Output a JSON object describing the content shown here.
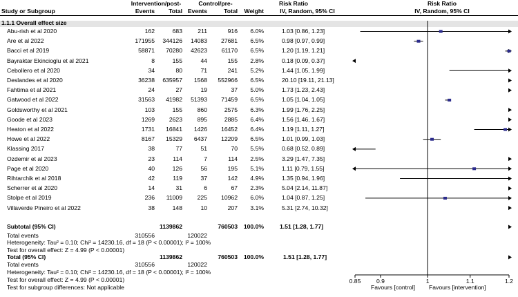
{
  "header": {
    "group1": "Intervention/post-",
    "group2": "Control/pre-",
    "effect": "Risk Ratio",
    "plot_effect": "Risk Ratio",
    "col_study": "Study or Subgroup",
    "col_events1": "Events",
    "col_total1": "Total",
    "col_events2": "Events",
    "col_total2": "Total",
    "col_weight": "Weight",
    "col_ci": "IV, Random, 95% CI",
    "plot_ci": "IV, Random, 95% CI"
  },
  "subgroup_label": "1.1.1 Overall effect size",
  "studies": [
    {
      "name": "Abu-rish et al 2020",
      "e1": "162",
      "t1": "683",
      "e2": "211",
      "t2": "916",
      "weight": "6.0%",
      "ci": "1.03 [0.86, 1.23]"
    },
    {
      "name": "Are et al 2022",
      "e1": "171955",
      "t1": "344126",
      "e2": "14083",
      "t2": "27681",
      "weight": "6.5%",
      "ci": "0.98 [0.97, 0.99]"
    },
    {
      "name": "Bacci et al 2019",
      "e1": "58871",
      "t1": "70280",
      "e2": "42623",
      "t2": "61170",
      "weight": "6.5%",
      "ci": "1.20 [1.19, 1.21]"
    },
    {
      "name": "Bayraktar Ekincioglu et al 2021",
      "e1": "8",
      "t1": "155",
      "e2": "44",
      "t2": "155",
      "weight": "2.8%",
      "ci": "0.18 [0.09, 0.37]"
    },
    {
      "name": "Cebollero et al 2020",
      "e1": "34",
      "t1": "80",
      "e2": "71",
      "t2": "241",
      "weight": "5.2%",
      "ci": "1.44 [1.05, 1.99]"
    },
    {
      "name": "Deslandes et al 2020",
      "e1": "36238",
      "t1": "635957",
      "e2": "1568",
      "t2": "552966",
      "weight": "6.5%",
      "ci": "20.10 [19.11, 21.13]"
    },
    {
      "name": "Fahtima et al 2021",
      "e1": "24",
      "t1": "27",
      "e2": "19",
      "t2": "37",
      "weight": "5.0%",
      "ci": "1.73 [1.23, 2.43]"
    },
    {
      "name": "Gatwood et al 2022",
      "e1": "31563",
      "t1": "41982",
      "e2": "51393",
      "t2": "71459",
      "weight": "6.5%",
      "ci": "1.05 [1.04, 1.05]"
    },
    {
      "name": "Goldsworthy et al 2021",
      "e1": "103",
      "t1": "155",
      "e2": "860",
      "t2": "2575",
      "weight": "6.3%",
      "ci": "1.99 [1.76, 2.25]"
    },
    {
      "name": "Goode et al 2023",
      "e1": "1269",
      "t1": "2623",
      "e2": "895",
      "t2": "2885",
      "weight": "6.4%",
      "ci": "1.56 [1.46, 1.67]"
    },
    {
      "name": "Heaton et al 2022",
      "e1": "1731",
      "t1": "16841",
      "e2": "1426",
      "t2": "16452",
      "weight": "6.4%",
      "ci": "1.19 [1.11, 1.27]"
    },
    {
      "name": "Howe et al 2022",
      "e1": "8167",
      "t1": "15329",
      "e2": "6437",
      "t2": "12209",
      "weight": "6.5%",
      "ci": "1.01 [0.99, 1.03]"
    },
    {
      "name": "Klassing 2017",
      "e1": "38",
      "t1": "77",
      "e2": "51",
      "t2": "70",
      "weight": "5.5%",
      "ci": "0.68 [0.52, 0.89]"
    },
    {
      "name": "Ozdemir et al 2023",
      "e1": "23",
      "t1": "114",
      "e2": "7",
      "t2": "114",
      "weight": "2.5%",
      "ci": "3.29 [1.47, 7.35]"
    },
    {
      "name": "Page et al 2020",
      "e1": "40",
      "t1": "126",
      "e2": "56",
      "t2": "195",
      "weight": "5.1%",
      "ci": "1.11 [0.79, 1.55]"
    },
    {
      "name": "Rihtarchik et al 2018",
      "e1": "42",
      "t1": "119",
      "e2": "37",
      "t2": "142",
      "weight": "4.9%",
      "ci": "1.35 [0.94, 1.96]"
    },
    {
      "name": "Scherrer et al 2020",
      "e1": "14",
      "t1": "31",
      "e2": "6",
      "t2": "67",
      "weight": "2.3%",
      "ci": "5.04 [2.14, 11.87]"
    },
    {
      "name": "Stolpe et al 2019",
      "e1": "236",
      "t1": "11009",
      "e2": "225",
      "t2": "10962",
      "weight": "6.0%",
      "ci": "1.04 [0.87, 1.25]"
    },
    {
      "name": "Villaverde Pineiro et al 2022",
      "e1": "38",
      "t1": "148",
      "e2": "10",
      "t2": "207",
      "weight": "3.1%",
      "ci": "5.31 [2.74, 10.32]"
    }
  ],
  "subtotal": {
    "label": "Subtotal (95% CI)",
    "t1": "1139862",
    "t2": "760503",
    "weight": "100.0%",
    "ci": "1.51 [1.28, 1.77]"
  },
  "subtotal_events": {
    "label": "Total events",
    "e1": "310556",
    "e2": "120022"
  },
  "subtotal_heterogeneity": "Heterogeneity: Tau² = 0.10; Chi² = 14230.16, df = 18 (P < 0.00001); I² = 100%",
  "subtotal_overall": "Test for overall effect: Z = 4.99 (P < 0.00001)",
  "total": {
    "label": "Total (95% CI)",
    "t1": "1139862",
    "t2": "760503",
    "weight": "100.0%",
    "ci": "1.51 [1.28, 1.77]"
  },
  "total_events": {
    "label": "Total events",
    "e1": "310556",
    "e2": "120022"
  },
  "total_heterogeneity": "Heterogeneity: Tau² = 0.10; Chi² = 14230.16, df = 18 (P < 0.00001); I² = 100%",
  "total_overall": "Test for overall effect: Z = 4.99 (P < 0.00001)",
  "subgroup_diff": "Test for subgroup differences: Not applicable",
  "colors": {
    "marker": "#2b2b8c",
    "subgroup_band": "#e4e4e4"
  },
  "chart_data": {
    "type": "forest",
    "scale": "log",
    "xlim": [
      0.85,
      1.2
    ],
    "ticks": [
      0.85,
      0.9,
      1,
      1.1,
      1.2
    ],
    "tick_labels": [
      "0.85",
      "0.9",
      "1",
      "1.1",
      "1.2"
    ],
    "reference": 1,
    "label_left": "Favours [control]",
    "label_right": "Favours [intervention]",
    "series": [
      {
        "est": 1.03,
        "lo": 0.86,
        "hi": 1.23
      },
      {
        "est": 0.98,
        "lo": 0.97,
        "hi": 0.99
      },
      {
        "est": 1.2,
        "lo": 1.19,
        "hi": 1.21
      },
      {
        "est": 0.18,
        "lo": 0.09,
        "hi": 0.37
      },
      {
        "est": 1.44,
        "lo": 1.05,
        "hi": 1.99
      },
      {
        "est": 20.1,
        "lo": 19.11,
        "hi": 21.13
      },
      {
        "est": 1.73,
        "lo": 1.23,
        "hi": 2.43
      },
      {
        "est": 1.05,
        "lo": 1.04,
        "hi": 1.05
      },
      {
        "est": 1.99,
        "lo": 1.76,
        "hi": 2.25
      },
      {
        "est": 1.56,
        "lo": 1.46,
        "hi": 1.67
      },
      {
        "est": 1.19,
        "lo": 1.11,
        "hi": 1.27
      },
      {
        "est": 1.01,
        "lo": 0.99,
        "hi": 1.03
      },
      {
        "est": 0.68,
        "lo": 0.52,
        "hi": 0.89
      },
      {
        "est": 3.29,
        "lo": 1.47,
        "hi": 7.35
      },
      {
        "est": 1.11,
        "lo": 0.79,
        "hi": 1.55
      },
      {
        "est": 1.35,
        "lo": 0.94,
        "hi": 1.96
      },
      {
        "est": 5.04,
        "lo": 2.14,
        "hi": 11.87
      },
      {
        "est": 1.04,
        "lo": 0.87,
        "hi": 1.25
      },
      {
        "est": 5.31,
        "lo": 2.74,
        "hi": 10.32
      }
    ],
    "subtotal": {
      "est": 1.51,
      "lo": 1.28,
      "hi": 1.77
    },
    "total": {
      "est": 1.51,
      "lo": 1.28,
      "hi": 1.77
    }
  }
}
